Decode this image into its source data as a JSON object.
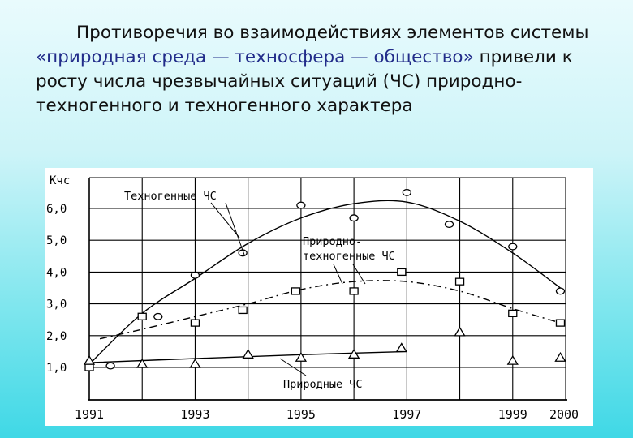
{
  "slide": {
    "paragraph_part1": "Противоречия во взаимодействиях элементов системы ",
    "paragraph_accent": "«природная среда — техносфера — общество»",
    "paragraph_part2": " привели к росту числа чрезвычайных ситуаций (ЧС) природно-техногенного и техногенного характера"
  },
  "chart_data": {
    "type": "line",
    "title": "",
    "xlabel": "",
    "ylabel": "Кчс",
    "x_ticks": [
      "1991",
      "1993",
      "1995",
      "1997",
      "1999",
      "2000"
    ],
    "y_ticks": [
      "1,0",
      "2,0",
      "3,0",
      "4,0",
      "5,0",
      "6,0"
    ],
    "xlim": [
      1991,
      2000
    ],
    "ylim": [
      1.0,
      6.0
    ],
    "grid": true,
    "legend": "labels on curves",
    "series": [
      {
        "name": "Техногенные ЧС",
        "marker": "circle",
        "line": "solid",
        "points": [
          [
            1991,
            1.1
          ],
          [
            1991.4,
            1.05
          ],
          [
            1992.3,
            2.6
          ],
          [
            1993,
            3.9
          ],
          [
            1993.9,
            4.6
          ],
          [
            1995,
            6.1
          ],
          [
            1996,
            5.7
          ],
          [
            1997,
            6.5
          ],
          [
            1997.8,
            5.5
          ],
          [
            1999,
            4.8
          ],
          [
            1999.9,
            3.4
          ]
        ],
        "trend": [
          [
            1991,
            1.1
          ],
          [
            1992,
            2.7
          ],
          [
            1993,
            3.8
          ],
          [
            1994,
            4.9
          ],
          [
            1995,
            5.7
          ],
          [
            1996,
            6.15
          ],
          [
            1997,
            6.2
          ],
          [
            1998,
            5.6
          ],
          [
            1999,
            4.6
          ],
          [
            1999.9,
            3.5
          ]
        ]
      },
      {
        "name": "Природно-техногенные ЧС",
        "marker": "square",
        "line": "dashed",
        "points": [
          [
            1991,
            1.0
          ],
          [
            1992,
            2.6
          ],
          [
            1993,
            2.4
          ],
          [
            1993.9,
            2.8
          ],
          [
            1994.9,
            3.4
          ],
          [
            1996,
            3.4
          ],
          [
            1996.9,
            4.0
          ],
          [
            1998,
            3.7
          ],
          [
            1999,
            2.7
          ],
          [
            1999.9,
            2.4
          ]
        ],
        "trend": [
          [
            1991.2,
            1.9
          ],
          [
            1992,
            2.2
          ],
          [
            1993,
            2.6
          ],
          [
            1994,
            3.0
          ],
          [
            1995,
            3.45
          ],
          [
            1996,
            3.7
          ],
          [
            1997,
            3.7
          ],
          [
            1998,
            3.4
          ],
          [
            1999,
            2.85
          ],
          [
            1999.9,
            2.4
          ]
        ]
      },
      {
        "name": "Природные ЧС",
        "marker": "triangle",
        "line": "solid",
        "points": [
          [
            1991,
            1.2
          ],
          [
            1992,
            1.1
          ],
          [
            1993,
            1.1
          ],
          [
            1994,
            1.4
          ],
          [
            1995,
            1.3
          ],
          [
            1996,
            1.4
          ],
          [
            1996.9,
            1.6
          ],
          [
            1998,
            2.1
          ],
          [
            1999,
            1.2
          ],
          [
            1999.9,
            1.3
          ]
        ],
        "trend": [
          [
            1991,
            1.15
          ],
          [
            1993,
            1.28
          ],
          [
            1995,
            1.4
          ],
          [
            1997,
            1.5
          ]
        ]
      }
    ]
  }
}
